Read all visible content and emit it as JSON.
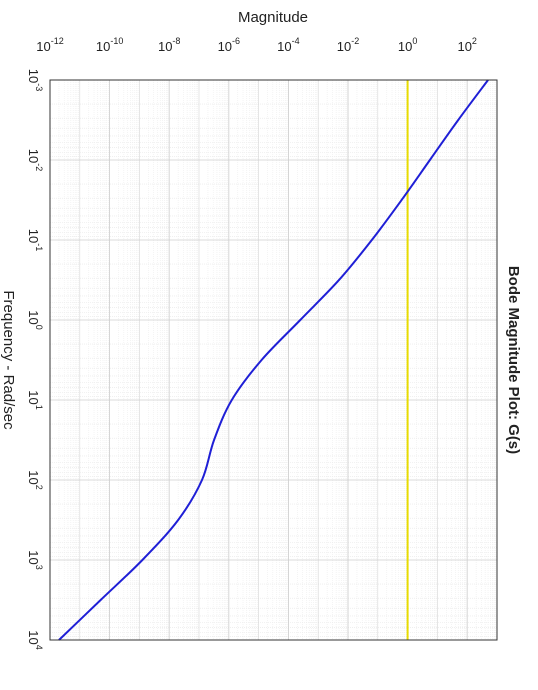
{
  "chart_data": {
    "type": "line",
    "title": "Bode Magnitude Plot: G(s)",
    "x_label": "Frequency - Rad/sec",
    "y_label": "Magnitude",
    "x_scale": "log",
    "y_scale": "log",
    "grid": true,
    "x": [
      0.001,
      0.00316,
      0.01,
      0.0316,
      0.1,
      0.316,
      1,
      3.16,
      10,
      31.6,
      100,
      316,
      1000,
      3162,
      10000
    ],
    "series": [
      {
        "color": "#1f1fd6",
        "values": [
          501,
          50,
          5.6,
          0.63,
          0.063,
          0.005,
          0.00025,
          1.26e-05,
          1.26e-06,
          3.2e-07,
          1.26e-07,
          2e-08,
          1.26e-09,
          5e-11,
          2e-12
        ]
      }
    ],
    "reference_line": {
      "value": 1,
      "color": "#e8dc00"
    },
    "xlim": [
      0.001,
      10000
    ],
    "xticks": [
      {
        "value": 0.001,
        "label": "10",
        "exponent": "-3"
      },
      {
        "value": 0.01,
        "label": "10",
        "exponent": "-2"
      },
      {
        "value": 0.1,
        "label": "10",
        "exponent": "-1"
      },
      {
        "value": 1,
        "label": "10",
        "exponent": "0"
      },
      {
        "value": 10,
        "label": "10",
        "exponent": "1"
      },
      {
        "value": 100,
        "label": "10",
        "exponent": "2"
      },
      {
        "value": 1000,
        "label": "10",
        "exponent": "3"
      },
      {
        "value": 10000,
        "label": "10",
        "exponent": "4"
      }
    ],
    "ylim": [
      1e-12,
      1000
    ],
    "yticks": [
      {
        "value": 1e-12,
        "label": "10",
        "exponent": "-12"
      },
      {
        "value": 1e-10,
        "label": "10",
        "exponent": "-10"
      },
      {
        "value": 1e-08,
        "label": "10",
        "exponent": "-8"
      },
      {
        "value": 1e-06,
        "label": "10",
        "exponent": "-6"
      },
      {
        "value": 0.0001,
        "label": "10",
        "exponent": "-4"
      },
      {
        "value": 0.01,
        "label": "10",
        "exponent": "-2"
      },
      {
        "value": 1,
        "label": "10",
        "exponent": "0"
      },
      {
        "value": 100,
        "label": "10",
        "exponent": "2"
      }
    ]
  }
}
